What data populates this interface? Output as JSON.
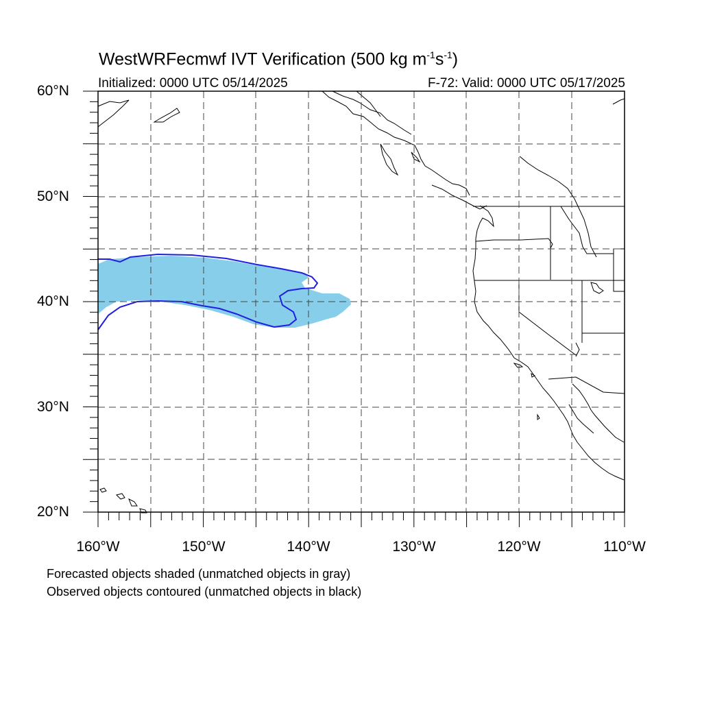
{
  "title": {
    "main": "WestWRFecmwf IVT Verification (500 kg m",
    "exp1": "-1",
    "mid": "s",
    "exp2": "-1",
    "end": ")"
  },
  "initialized": "Initialized: 0000 UTC 05/14/2025",
  "valid": "F-72: Valid: 0000 UTC 05/17/2025",
  "lat_labels": [
    "60°N",
    "50°N",
    "40°N",
    "30°N",
    "20°N"
  ],
  "lon_labels": [
    "160°W",
    "150°W",
    "140°W",
    "130°W",
    "120°W",
    "110°W"
  ],
  "notes": [
    "Forecasted objects shaded (unmatched objects in gray)",
    "Observed objects contoured (unmatched objects in black)"
  ],
  "map": {
    "lon_range": [
      -160,
      -110
    ],
    "lat_range": [
      20,
      60
    ],
    "gridlines": "dashed every 5°",
    "forecast_object_color": "#87ceeb",
    "observed_contour_color": "#1f1fe0",
    "coastline_color": "#000000"
  }
}
